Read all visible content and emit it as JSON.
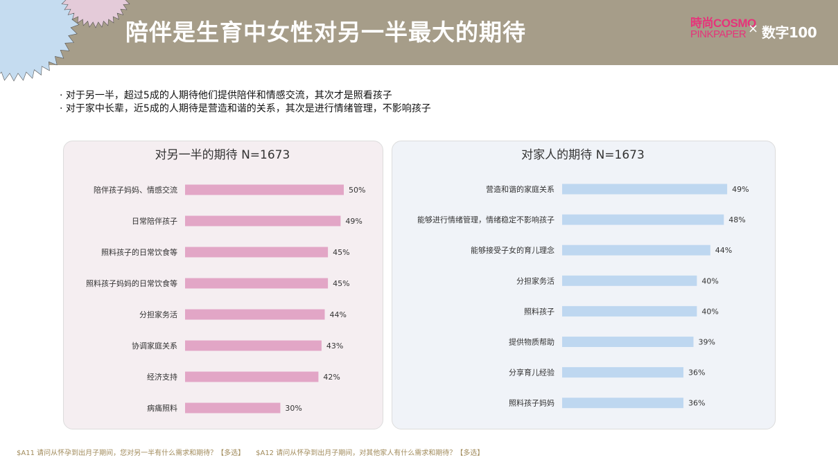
{
  "header": {
    "title": "陪伴是生育中女性对另一半最大的期待",
    "brand_primary_line1": "時尚COSMO",
    "brand_primary_line2": "PINKPAPER",
    "brand_separator": "×",
    "brand_secondary": "数字100"
  },
  "bullets": [
    "对于另一半，超过5成的人期待他们提供陪伴和情感交流，其次才是照看孩子",
    "对于家中长辈，近5成的人期待是营造和谐的关系，其次是进行情绪管理，不影响孩子"
  ],
  "chart_data": [
    {
      "type": "bar",
      "orientation": "horizontal",
      "title": "对另一半的期待 N=1673",
      "categories": [
        "陪伴孩子妈妈、情感交流",
        "日常陪伴孩子",
        "照料孩子的日常饮食等",
        "照料孩子妈妈的日常饮食等",
        "分担家务活",
        "协调家庭关系",
        "经济支持",
        "病痛照料"
      ],
      "values": [
        50,
        49,
        45,
        45,
        44,
        43,
        42,
        30
      ],
      "value_suffix": "%",
      "bar_color": "#e2a6c6"
    },
    {
      "type": "bar",
      "orientation": "horizontal",
      "title": "对家人的期待 N=1673",
      "categories": [
        "营造和谐的家庭关系",
        "能够进行情绪管理，情绪稳定不影响孩子",
        "能够接受子女的育儿理念",
        "分担家务活",
        "照料孩子",
        "提供物质帮助",
        "分享育儿经验",
        "照料孩子妈妈"
      ],
      "values": [
        49,
        48,
        44,
        40,
        40,
        39,
        36,
        36
      ],
      "value_suffix": "%",
      "bar_color": "#bed7f0"
    }
  ],
  "footnotes": [
    "$A11 请问从怀孕到出月子期间，您对另一半有什么需求和期待？【多选】",
    "$A12 请问从怀孕到出月子期间，对其他家人有什么需求和期待？【多选】"
  ]
}
